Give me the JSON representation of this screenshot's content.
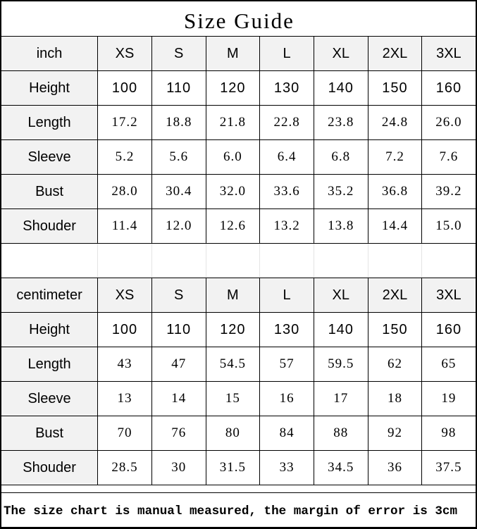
{
  "title": "Size Guide",
  "sizes": [
    "XS",
    "S",
    "M",
    "L",
    "XL",
    "2XL",
    "3XL"
  ],
  "inch": {
    "unit": "inch",
    "rows": [
      {
        "label": "Height",
        "values": [
          "100",
          "110",
          "120",
          "130",
          "140",
          "150",
          "160"
        ]
      },
      {
        "label": "Length",
        "values": [
          "17.2",
          "18.8",
          "21.8",
          "22.8",
          "23.8",
          "24.8",
          "26.0"
        ]
      },
      {
        "label": "Sleeve",
        "values": [
          "5.2",
          "5.6",
          "6.0",
          "6.4",
          "6.8",
          "7.2",
          "7.6"
        ]
      },
      {
        "label": "Bust",
        "values": [
          "28.0",
          "30.4",
          "32.0",
          "33.6",
          "35.2",
          "36.8",
          "39.2"
        ]
      },
      {
        "label": "Shouder",
        "values": [
          "11.4",
          "12.0",
          "12.6",
          "13.2",
          "13.8",
          "14.4",
          "15.0"
        ]
      }
    ]
  },
  "centimeter": {
    "unit": "centimeter",
    "rows": [
      {
        "label": "Height",
        "values": [
          "100",
          "110",
          "120",
          "130",
          "140",
          "150",
          "160"
        ]
      },
      {
        "label": "Length",
        "values": [
          "43",
          "47",
          "54.5",
          "57",
          "59.5",
          "62",
          "65"
        ]
      },
      {
        "label": "Sleeve",
        "values": [
          "13",
          "14",
          "15",
          "16",
          "17",
          "18",
          "19"
        ]
      },
      {
        "label": "Bust",
        "values": [
          "70",
          "76",
          "80",
          "84",
          "88",
          "92",
          "98"
        ]
      },
      {
        "label": "Shouder",
        "values": [
          "28.5",
          "30",
          "31.5",
          "33",
          "34.5",
          "36",
          "37.5"
        ]
      }
    ]
  },
  "footer": "The size chart is manual measured, the margin of error is 3cm"
}
